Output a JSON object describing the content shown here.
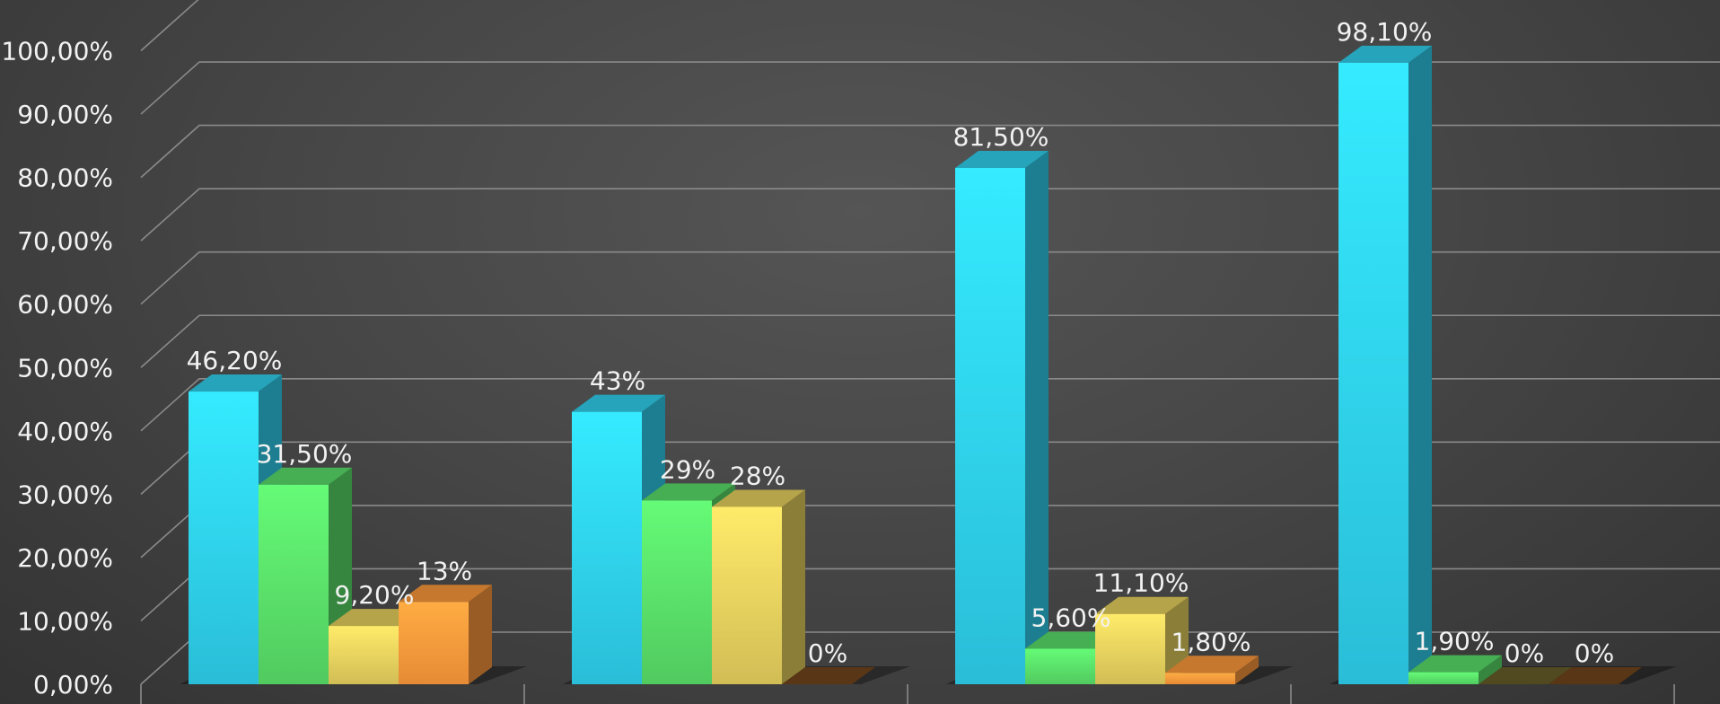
{
  "chart_data": {
    "type": "bar",
    "three_d": true,
    "categories": [
      "",
      "",
      "",
      ""
    ],
    "title": "",
    "xlabel": "",
    "ylabel": "",
    "ylim": [
      0,
      100
    ],
    "yticks": [
      0,
      10,
      20,
      30,
      40,
      50,
      60,
      70,
      80,
      90,
      100
    ],
    "ytick_labels": [
      "0,00%",
      "10,00%",
      "20,00%",
      "30,00%",
      "40,00%",
      "50,00%",
      "60,00%",
      "70,00%",
      "80,00%",
      "90,00%",
      "100,00%"
    ],
    "grid": true,
    "legend": "none",
    "series": [
      {
        "values": [
          46.2,
          43,
          81.5,
          98.1
        ],
        "labels": [
          "46,20%",
          "43%",
          "81,50%",
          "98,10%"
        ],
        "color": "#2fd2f0"
      },
      {
        "values": [
          31.5,
          29,
          5.6,
          1.9
        ],
        "labels": [
          "31,50%",
          "29%",
          "5,60%",
          "1,90%"
        ],
        "color": "#5ae06a"
      },
      {
        "values": [
          9.2,
          28,
          11.1,
          0
        ],
        "labels": [
          "9,20%",
          "28%",
          "11,10%",
          "0%"
        ],
        "color": "#e8d25e"
      },
      {
        "values": [
          13,
          0,
          1.8,
          0
        ],
        "labels": [
          "13%",
          "0%",
          "1,80%",
          "0%"
        ],
        "color": "#ff9a3c"
      }
    ]
  }
}
